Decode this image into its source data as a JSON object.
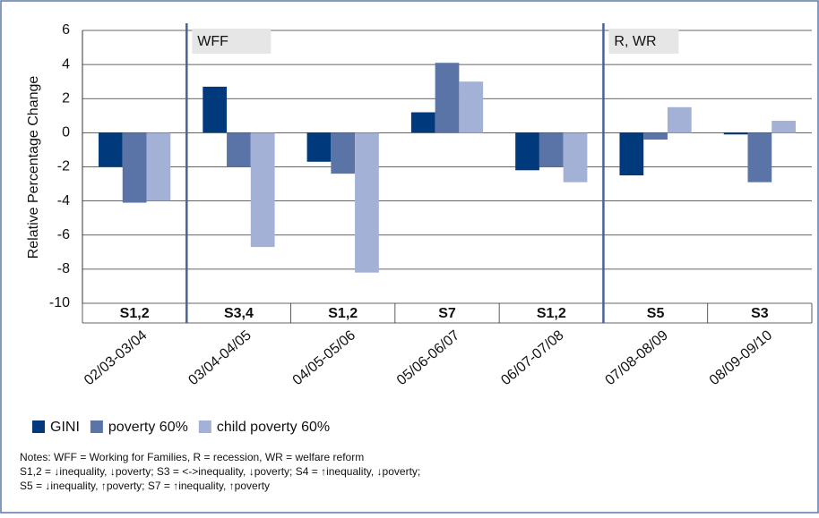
{
  "chart_data": {
    "type": "bar",
    "y_label": "Relative Percentage Change",
    "categories": [
      "02/03-03/04",
      "03/04-04/05",
      "04/05-05/06",
      "05/06-06/07",
      "06/07-07/08",
      "07/08-08/09",
      "08/09-09/10"
    ],
    "regimes": [
      "S1,2",
      "S3,4",
      "S1,2",
      "S7",
      "S1,2",
      "S5",
      "S3"
    ],
    "annotations": [
      "WFF",
      "R, WR"
    ],
    "series": [
      {
        "name": "GINI",
        "color": "#003a7d",
        "values": [
          -2.0,
          2.7,
          -1.7,
          1.2,
          -2.2,
          -2.5,
          -0.1
        ]
      },
      {
        "name": "poverty 60%",
        "color": "#5b74a8",
        "values": [
          -4.1,
          -2.0,
          -2.4,
          4.1,
          -2.0,
          -0.4,
          -2.9
        ]
      },
      {
        "name": "child poverty 60%",
        "color": "#a4b1d6",
        "values": [
          -4.0,
          -6.7,
          -8.2,
          3.0,
          -2.9,
          1.5,
          0.7
        ]
      }
    ],
    "ylim": [
      -10,
      6
    ],
    "yticks": [
      -10,
      -8,
      -6,
      -4,
      -2,
      0,
      2,
      4,
      6
    ],
    "grid": true,
    "legend": "bottom-left",
    "notes": [
      "Notes: WFF = Working for Families, R = recession, WR = welfare reform",
      "S1,2 = ↓inequality, ↓poverty; S3 = <->inequality, ↓poverty; S4 = ↑inequality, ↓poverty;",
      "S5 = ↓inequality, ↑poverty; S7 = ↑inequality, ↑poverty"
    ]
  }
}
